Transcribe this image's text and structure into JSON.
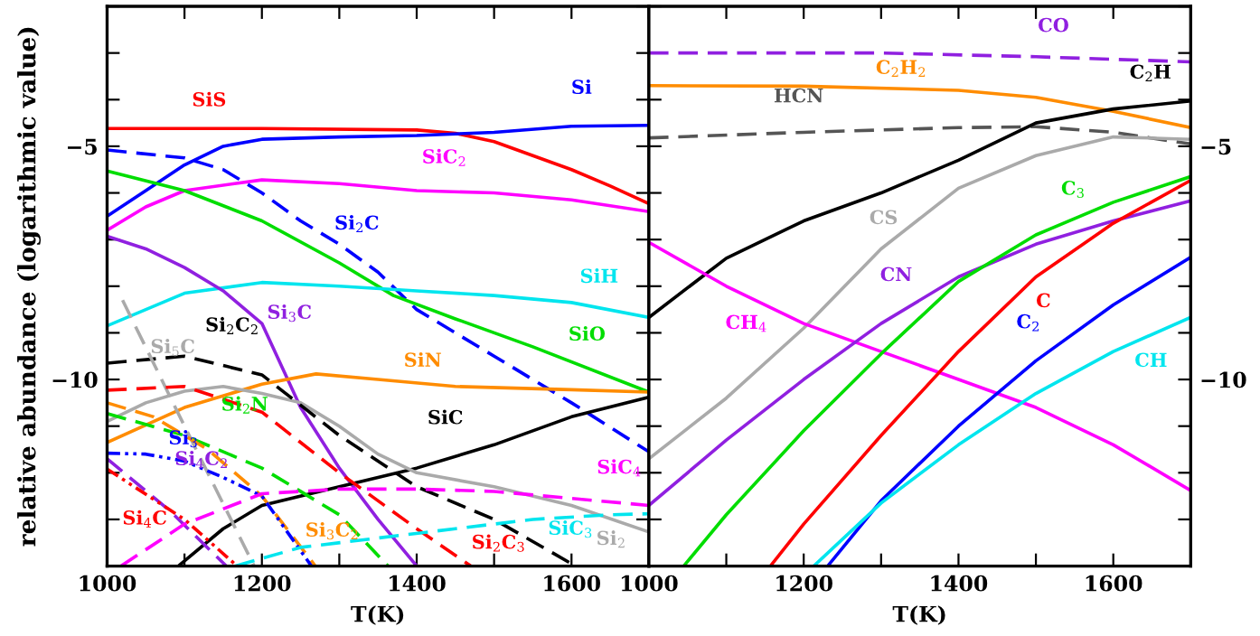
{
  "chart_data": [
    {
      "type": "line",
      "xlabel": "T(K)",
      "ylabel": "relative abundance (logarithmic value)",
      "xlim": [
        1000,
        1700
      ],
      "ylim": [
        -14,
        -2
      ],
      "xticks": [
        1000,
        {
          "value": 1100,
          "label": null
        },
        1200,
        {
          "value": 1300,
          "label": null
        },
        1400,
        {
          "value": 1500,
          "label": null
        },
        1600,
        {
          "value": 1700,
          "label": null
        }
      ],
      "yticks": [
        {
          "value": -14,
          "label": null
        },
        {
          "value": -13,
          "label": null
        },
        {
          "value": -12,
          "label": null
        },
        {
          "value": -11,
          "label": null
        },
        {
          "value": -10,
          "label": "−10"
        },
        {
          "value": -9,
          "label": null
        },
        {
          "value": -8,
          "label": null
        },
        {
          "value": -7,
          "label": null
        },
        {
          "value": -6,
          "label": null
        },
        {
          "value": -5,
          "label": "−5"
        },
        {
          "value": -4,
          "label": null
        },
        {
          "value": -3,
          "label": null
        },
        {
          "value": -2,
          "label": null
        }
      ],
      "series": [
        {
          "color": "#ff0000",
          "line_style": "solid",
          "x": [
            1000,
            1200,
            1400,
            1450,
            1500,
            1550,
            1600,
            1650,
            1700
          ],
          "values": [
            -4.62,
            -4.62,
            -4.65,
            -4.72,
            -4.9,
            -5.2,
            -5.5,
            -5.85,
            -6.23
          ]
        },
        {
          "color": "#0000ff",
          "line_style": "solid",
          "x": [
            1000,
            1050,
            1100,
            1150,
            1200,
            1300,
            1400,
            1500,
            1600,
            1700
          ],
          "values": [
            -6.5,
            -5.95,
            -5.4,
            -5.0,
            -4.85,
            -4.8,
            -4.77,
            -4.7,
            -4.57,
            -4.55
          ]
        },
        {
          "color": "#0000ff",
          "line_style": "dashed",
          "x": [
            1000,
            1100,
            1150,
            1200,
            1250,
            1300,
            1350,
            1400,
            1500,
            1600,
            1700
          ],
          "values": [
            -5.08,
            -5.25,
            -5.5,
            -6.0,
            -6.6,
            -7.1,
            -7.7,
            -8.5,
            -9.5,
            -10.5,
            -11.55
          ]
        },
        {
          "color": "#ff00ff",
          "line_style": "solid",
          "x": [
            1000,
            1050,
            1100,
            1200,
            1300,
            1400,
            1500,
            1600,
            1700
          ],
          "values": [
            -6.8,
            -6.3,
            -5.95,
            -5.72,
            -5.8,
            -5.95,
            -6.0,
            -6.15,
            -6.4
          ]
        },
        {
          "color": "#00dd00",
          "line_style": "solid",
          "x": [
            1000,
            1100,
            1200,
            1300,
            1370,
            1450,
            1550,
            1700
          ],
          "values": [
            -5.53,
            -5.95,
            -6.6,
            -7.5,
            -8.2,
            -8.7,
            -9.3,
            -10.27
          ]
        },
        {
          "color": "#00e5ee",
          "line_style": "solid",
          "x": [
            1000,
            1100,
            1200,
            1300,
            1400,
            1500,
            1600,
            1700
          ],
          "values": [
            -8.85,
            -8.15,
            -7.92,
            -8.0,
            -8.1,
            -8.2,
            -8.35,
            -8.67
          ]
        },
        {
          "color": "#9020e0",
          "line_style": "solid",
          "x": [
            1000,
            1050,
            1100,
            1150,
            1200,
            1250,
            1300,
            1350,
            1400
          ],
          "values": [
            -6.93,
            -7.2,
            -7.6,
            -8.1,
            -8.8,
            -10.6,
            -11.9,
            -13.0,
            -14.0
          ]
        },
        {
          "color": "#ff8c00",
          "line_style": "solid",
          "x": [
            1000,
            1100,
            1200,
            1270,
            1350,
            1450,
            1600,
            1700
          ],
          "values": [
            -11.35,
            -10.6,
            -10.1,
            -9.88,
            -10.0,
            -10.15,
            -10.22,
            -10.27
          ]
        },
        {
          "color": "#000000",
          "line_style": "solid",
          "x": [
            1092,
            1150,
            1200,
            1300,
            1400,
            1500,
            1600,
            1700
          ],
          "values": [
            -14,
            -13.2,
            -12.7,
            -12.3,
            -11.9,
            -11.4,
            -10.8,
            -10.38
          ]
        },
        {
          "color": "#aaaaaa",
          "line_style": "solid",
          "x": [
            1000,
            1050,
            1100,
            1150,
            1200,
            1250,
            1300,
            1350,
            1400,
            1500,
            1600,
            1700
          ],
          "values": [
            -10.9,
            -10.5,
            -10.25,
            -10.15,
            -10.3,
            -10.5,
            -11.0,
            -11.6,
            -12.0,
            -12.3,
            -12.7,
            -13.27
          ]
        },
        {
          "color": "#000000",
          "line_style": "dashed",
          "x": [
            1000,
            1100,
            1200,
            1300,
            1400,
            1500,
            1600
          ],
          "values": [
            -9.65,
            -9.5,
            -9.9,
            -11.2,
            -12.3,
            -13.0,
            -13.95
          ]
        },
        {
          "color": "#aaaaaa",
          "line_style": "dashed",
          "x": [
            1020,
            1100,
            1190
          ],
          "values": [
            -8.3,
            -11.0,
            -14
          ]
        },
        {
          "color": "#00dd00",
          "line_style": "dashed",
          "x": [
            1000,
            1100,
            1200,
            1300,
            1363
          ],
          "values": [
            -10.73,
            -11.2,
            -11.9,
            -12.9,
            -14
          ]
        },
        {
          "color": "#ff0000",
          "line_style": "dashed",
          "x": [
            1000,
            1100,
            1200,
            1300,
            1400,
            1470
          ],
          "values": [
            -10.23,
            -10.15,
            -10.7,
            -12.0,
            -13.2,
            -14
          ]
        },
        {
          "color": "#ff8c00",
          "line_style": "dashed",
          "x": [
            1000,
            1060,
            1130,
            1200,
            1269
          ],
          "values": [
            -10.5,
            -10.8,
            -11.5,
            -12.5,
            -14
          ]
        },
        {
          "color": "#0000ff",
          "line_style": "dotted",
          "x": [
            1000,
            1050,
            1100,
            1150,
            1200,
            1264
          ],
          "values": [
            -11.58,
            -11.6,
            -11.75,
            -12.1,
            -12.5,
            -14
          ]
        },
        {
          "color": "#9020e0",
          "line_style": "dashed",
          "x": [
            1000,
            1080,
            1154
          ],
          "values": [
            -11.7,
            -12.8,
            -14
          ]
        },
        {
          "color": "#ff0000",
          "line_style": "dotted",
          "x": [
            1000,
            1100,
            1168
          ],
          "values": [
            -11.92,
            -13.0,
            -14
          ]
        },
        {
          "color": "#ff00ff",
          "line_style": "dashed",
          "x": [
            1018,
            1100,
            1200,
            1300,
            1400,
            1500,
            1600,
            1700
          ],
          "values": [
            -14,
            -13.1,
            -12.45,
            -12.35,
            -12.35,
            -12.4,
            -12.55,
            -12.7
          ]
        },
        {
          "color": "#00e5ee",
          "line_style": "dashed",
          "x": [
            1166,
            1250,
            1350,
            1450,
            1550,
            1650,
            1700
          ],
          "values": [
            -14,
            -13.6,
            -13.4,
            -13.2,
            -13.0,
            -12.9,
            -12.88
          ]
        }
      ],
      "annotations": [
        {
          "text": "SiS",
          "x": 1200,
          "y": -4.62
        },
        {
          "text": "Si",
          "x": 1600,
          "y": -4.57
        },
        {
          "text": "Si$_{2}$C",
          "x": 1300,
          "y": -7.1
        },
        {
          "text": "SiC$_{2}$",
          "x": 1400,
          "y": -5.95
        },
        {
          "text": "SiO",
          "x": 1620,
          "y": -9.75
        },
        {
          "text": "SiH",
          "x": 1600,
          "y": -8.35
        },
        {
          "text": "Si$_{3}$C",
          "x": 1200,
          "y": -8.8
        },
        {
          "text": "SiN",
          "x": 1450,
          "y": -10.15
        },
        {
          "text": "SiC",
          "x": 1450,
          "y": -11.65
        },
        {
          "text": "Si$_{2}$",
          "x": 1700,
          "y": -13.27
        },
        {
          "text": "Si$_{2}$C$_{2}$",
          "x": 1100,
          "y": -9.5
        },
        {
          "text": "Si$_{5}$C",
          "x": 1020,
          "y": -8.3
        },
        {
          "text": "Si$_{2}$N",
          "x": 1100,
          "y": -11.2
        },
        {
          "text": "Si$_{2}$C$_{3}$",
          "x": 1470,
          "y": -14
        },
        {
          "text": "Si$_{3}$C$_{2}$",
          "x": 1200,
          "y": -12.5
        },
        {
          "text": "Si$_{3}$",
          "x": 1050,
          "y": -11.6
        },
        {
          "text": "Si$_{4}$C$_{2}$",
          "x": 1080,
          "y": -12.8
        },
        {
          "text": "Si$_{4}$C",
          "x": 1000,
          "y": -11.92
        },
        {
          "text": "SiC$_{4}$",
          "x": 1600,
          "y": -12.55
        },
        {
          "text": "SiC$_{3}$",
          "x": 1550,
          "y": -13.0
        }
      ],
      "grid": false,
      "legend": false
    },
    {
      "type": "line",
      "xlabel": "T(K)",
      "xlim": [
        1000,
        1700
      ],
      "ylim": [
        -14,
        -2
      ],
      "xticks": [
        1000,
        {
          "value": 1100,
          "label": null
        },
        1200,
        {
          "value": 1300,
          "label": null
        },
        1400,
        {
          "value": 1500,
          "label": null
        },
        1600,
        {
          "value": 1700,
          "label": null
        }
      ],
      "yticks": [
        {
          "value": -14,
          "label": null
        },
        {
          "value": -13,
          "label": null
        },
        {
          "value": -12,
          "label": null
        },
        {
          "value": -11,
          "label": null
        },
        {
          "value": -10,
          "label": "−10"
        },
        {
          "value": -9,
          "label": null
        },
        {
          "value": -8,
          "label": null
        },
        {
          "value": -7,
          "label": null
        },
        {
          "value": -6,
          "label": null
        },
        {
          "value": -5,
          "label": "−5"
        },
        {
          "value": -4,
          "label": null
        },
        {
          "value": -3,
          "label": null
        },
        {
          "value": -2,
          "label": null
        }
      ],
      "series": [
        {
          "color": "#9020e0",
          "line_style": "dashed",
          "x": [
            1000,
            1300,
            1500,
            1700
          ],
          "values": [
            -3.0,
            -3.0,
            -3.08,
            -3.19
          ]
        },
        {
          "color": "#ff8c00",
          "line_style": "solid",
          "x": [
            1000,
            1200,
            1400,
            1500,
            1600,
            1700
          ],
          "values": [
            -3.7,
            -3.71,
            -3.8,
            -3.95,
            -4.25,
            -4.6
          ]
        },
        {
          "color": "#555555",
          "line_style": "dashed",
          "x": [
            1000,
            1200,
            1400,
            1500,
            1600,
            1700
          ],
          "values": [
            -4.82,
            -4.7,
            -4.6,
            -4.58,
            -4.7,
            -4.95
          ]
        },
        {
          "color": "#000000",
          "line_style": "solid",
          "x": [
            1000,
            1100,
            1200,
            1300,
            1400,
            1500,
            1600,
            1700
          ],
          "values": [
            -8.67,
            -7.4,
            -6.6,
            -6.0,
            -5.3,
            -4.5,
            -4.2,
            -4.03
          ]
        },
        {
          "color": "#aaaaaa",
          "line_style": "solid",
          "x": [
            1000,
            1100,
            1200,
            1300,
            1400,
            1500,
            1600,
            1700
          ],
          "values": [
            -11.7,
            -10.4,
            -8.9,
            -7.2,
            -5.9,
            -5.2,
            -4.8,
            -4.85
          ]
        },
        {
          "color": "#ff00ff",
          "line_style": "solid",
          "x": [
            1000,
            1100,
            1200,
            1300,
            1400,
            1500,
            1600,
            1700
          ],
          "values": [
            -7.06,
            -8.0,
            -8.8,
            -9.4,
            -10.0,
            -10.6,
            -11.4,
            -12.38
          ]
        },
        {
          "color": "#9020e0",
          "line_style": "solid",
          "x": [
            1000,
            1100,
            1200,
            1300,
            1400,
            1500,
            1600,
            1700
          ],
          "values": [
            -12.7,
            -11.3,
            -10.0,
            -8.8,
            -7.8,
            -7.1,
            -6.6,
            -6.17
          ]
        },
        {
          "color": "#00dd00",
          "line_style": "solid",
          "x": [
            1045,
            1100,
            1200,
            1300,
            1400,
            1500,
            1600,
            1700
          ],
          "values": [
            -14,
            -12.9,
            -11.1,
            -9.45,
            -7.9,
            -6.9,
            -6.2,
            -5.65
          ]
        },
        {
          "color": "#ff0000",
          "line_style": "solid",
          "x": [
            1157,
            1200,
            1300,
            1400,
            1500,
            1600,
            1700
          ],
          "values": [
            -14,
            -13.1,
            -11.2,
            -9.4,
            -7.8,
            -6.65,
            -5.73
          ]
        },
        {
          "color": "#0000ff",
          "line_style": "solid",
          "x": [
            1231,
            1300,
            1400,
            1500,
            1600,
            1700
          ],
          "values": [
            -14,
            -12.6,
            -11.0,
            -9.6,
            -8.4,
            -7.38
          ]
        },
        {
          "color": "#00e5ee",
          "line_style": "solid",
          "x": [
            1213,
            1300,
            1400,
            1500,
            1600,
            1700
          ],
          "values": [
            -14,
            -12.65,
            -11.4,
            -10.3,
            -9.4,
            -8.67
          ]
        }
      ],
      "annotations": [
        {
          "text": "CO",
          "x": 1500,
          "y": -3.08
        },
        {
          "text": "C$_{2}$H$_{2}$",
          "x": 1326,
          "y": -3.77
        },
        {
          "text": "HCN",
          "x": 1200,
          "y": -4.7
        },
        {
          "text": "C$_{2}$H",
          "x": 1700,
          "y": -4.03
        },
        {
          "text": "CS",
          "x": 1300,
          "y": -7.2
        },
        {
          "text": "CH$_{4}$",
          "x": 1100,
          "y": -8.0
        },
        {
          "text": "CN",
          "x": 1300,
          "y": -8.8
        },
        {
          "text": "C$_{3}$",
          "x": 1600,
          "y": -6.2
        },
        {
          "text": "C",
          "x": 1500,
          "y": -7.8
        },
        {
          "text": "C$_{2}$",
          "x": 1500,
          "y": -9.6
        },
        {
          "text": "CH",
          "x": 1600,
          "y": -9.4
        }
      ],
      "grid": false,
      "legend": false
    }
  ]
}
